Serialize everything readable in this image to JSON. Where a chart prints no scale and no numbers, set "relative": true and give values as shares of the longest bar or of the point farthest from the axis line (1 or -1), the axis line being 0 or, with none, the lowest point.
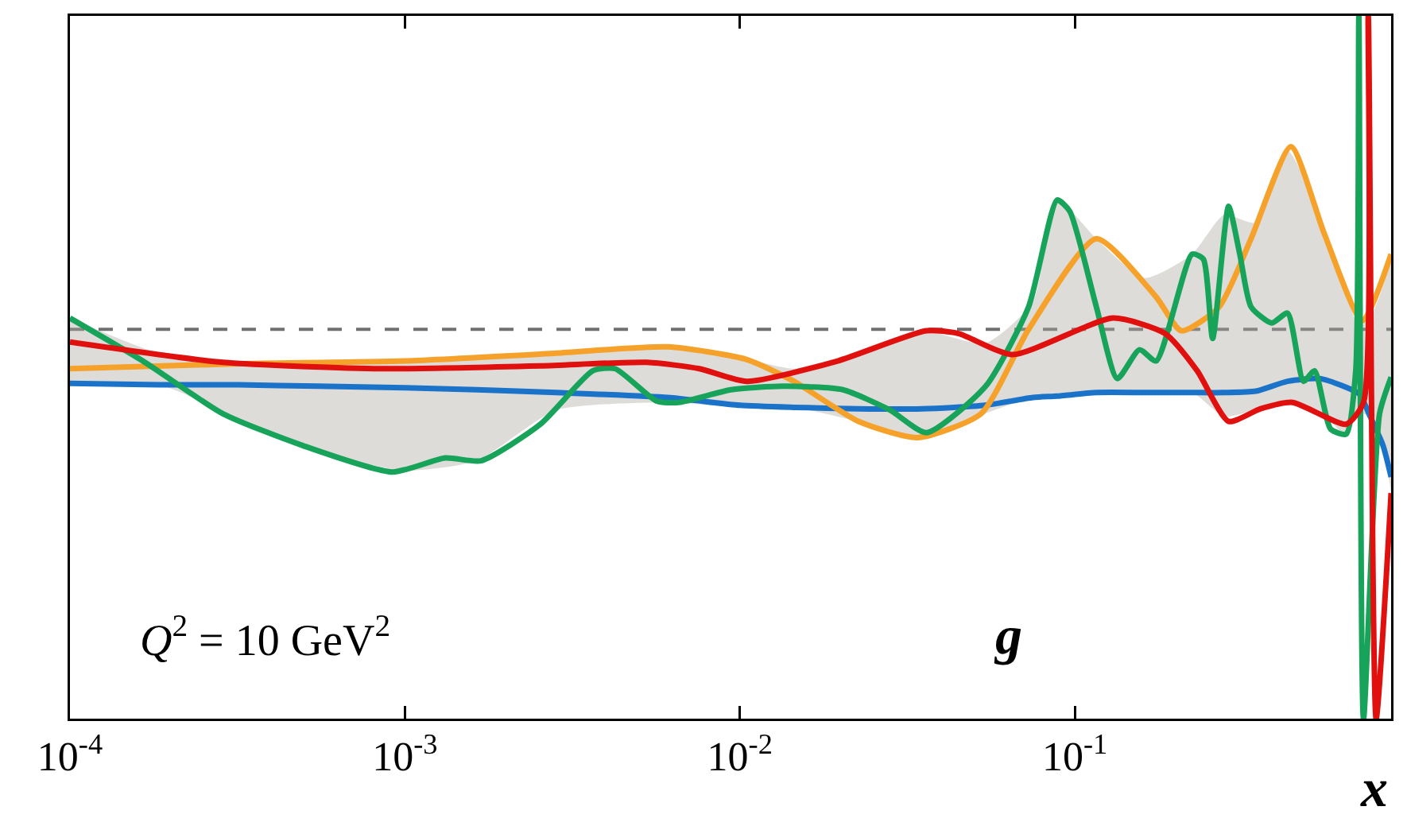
{
  "chart_data": {
    "type": "line",
    "relative": true,
    "log": "x",
    "marker": "none",
    "line_style": "solid",
    "xlabel": "x",
    "xlim": [
      0.0001,
      0.88
    ],
    "xticks": [
      {
        "value": 0.0001,
        "label": "10$^{-4}$"
      },
      {
        "value": 0.001,
        "label": "10$^{-3}$"
      },
      {
        "value": 0.01,
        "label": "10$^{-2}$"
      },
      {
        "value": 0.1,
        "label": "10$^{-1}$"
      }
    ],
    "annotations": [
      "Q$^{2}$ = 10 GeV$^{2}$",
      "g"
    ],
    "ref_lines": [
      {
        "axis": "y",
        "value": 0.554,
        "label": null,
        "color": "#707070",
        "line_style": "dashed"
      }
    ],
    "series": [
      {
        "color": "#1a73c8",
        "x": [
          0.0001,
          0.000184,
          0.000318,
          0.00055,
          0.001,
          0.00164,
          0.00283,
          0.0061,
          0.01,
          0.0145,
          0.0226,
          0.035,
          0.054,
          0.075,
          0.0886,
          0.116,
          0.161,
          0.224,
          0.279,
          0.347,
          0.432,
          0.537,
          0.634,
          0.707,
          0.762,
          0.832,
          0.88
        ],
        "values": [
          0.477,
          0.475,
          0.475,
          0.473,
          0.471,
          0.468,
          0.464,
          0.457,
          0.446,
          0.443,
          0.441,
          0.441,
          0.446,
          0.457,
          0.459,
          0.464,
          0.464,
          0.464,
          0.464,
          0.466,
          0.48,
          0.484,
          0.473,
          0.462,
          0.43,
          0.389,
          0.344
        ],
        "lower": [
          0.477,
          0.475,
          0.428,
          0.38,
          0.353,
          0.367,
          0.439,
          0.45,
          0.443,
          0.443,
          0.423,
          0.4,
          0.434,
          0.457,
          0.459,
          0.464,
          0.464,
          0.464,
          0.43,
          0.439,
          0.446,
          0.439,
          0.407,
          0.434,
          0.43,
          0.389,
          0.321
        ],
        "upper": [
          0.57,
          0.52,
          0.507,
          0.509,
          0.511,
          0.516,
          0.52,
          0.529,
          0.514,
          0.498,
          0.52,
          0.552,
          0.534,
          0.593,
          0.738,
          0.683,
          0.627,
          0.661,
          0.717,
          0.706,
          0.808,
          0.717,
          0.615,
          0.559,
          0.57,
          0.615,
          0.661
        ]
      },
      {
        "color": "#f5a12a",
        "x": [
          0.0001,
          0.000318,
          0.001,
          0.00283,
          0.0061,
          0.0105,
          0.0145,
          0.0226,
          0.0339,
          0.0525,
          0.0728,
          0.116,
          0.175,
          0.208,
          0.27,
          0.336,
          0.442,
          0.556,
          0.722,
          0.88
        ],
        "values": [
          0.498,
          0.505,
          0.509,
          0.52,
          0.529,
          0.511,
          0.48,
          0.423,
          0.4,
          0.434,
          0.554,
          0.683,
          0.6,
          0.552,
          0.586,
          0.683,
          0.814,
          0.69,
          0.566,
          0.661
        ]
      },
      {
        "color": "#17a35a",
        "x": [
          0.0001,
          0.000165,
          0.000286,
          0.000493,
          0.000918,
          0.00132,
          0.00169,
          0.00254,
          0.00364,
          0.00424,
          0.00564,
          0.00657,
          0.00942,
          0.0135,
          0.0203,
          0.0281,
          0.0361,
          0.0542,
          0.0728,
          0.0886,
          0.0966,
          0.116,
          0.134,
          0.156,
          0.175,
          0.224,
          0.242,
          0.258,
          0.288,
          0.311,
          0.336,
          0.387,
          0.432,
          0.482,
          0.52,
          0.581,
          0.646,
          0.69,
          0.705,
          0.728,
          0.813,
          0.88
        ],
        "values": [
          0.57,
          0.509,
          0.434,
          0.389,
          0.351,
          0.371,
          0.367,
          0.419,
          0.495,
          0.498,
          0.452,
          0.45,
          0.468,
          0.473,
          0.468,
          0.439,
          0.407,
          0.473,
          0.586,
          0.738,
          0.722,
          0.586,
          0.484,
          0.525,
          0.509,
          0.661,
          0.654,
          0.541,
          0.729,
          0.661,
          0.586,
          0.563,
          0.577,
          0.48,
          0.495,
          0.412,
          0.405,
          0.495,
          1,
          0,
          0.434,
          0.486
        ]
      },
      {
        "color": "#e0100f",
        "x": [
          0.0001,
          0.000286,
          0.00085,
          0.00254,
          0.00528,
          0.00757,
          0.0105,
          0.0196,
          0.0361,
          0.045,
          0.0652,
          0.13,
          0.186,
          0.232,
          0.288,
          0.359,
          0.447,
          0.646,
          0.728,
          0.752,
          0.794,
          0.88
        ],
        "values": [
          0.536,
          0.507,
          0.498,
          0.502,
          0.507,
          0.498,
          0.48,
          0.509,
          0.552,
          0.548,
          0.518,
          0.57,
          0.548,
          0.495,
          0.423,
          0.441,
          0.45,
          0.419,
          0.45,
          1,
          0,
          0.321
        ]
      }
    ]
  }
}
